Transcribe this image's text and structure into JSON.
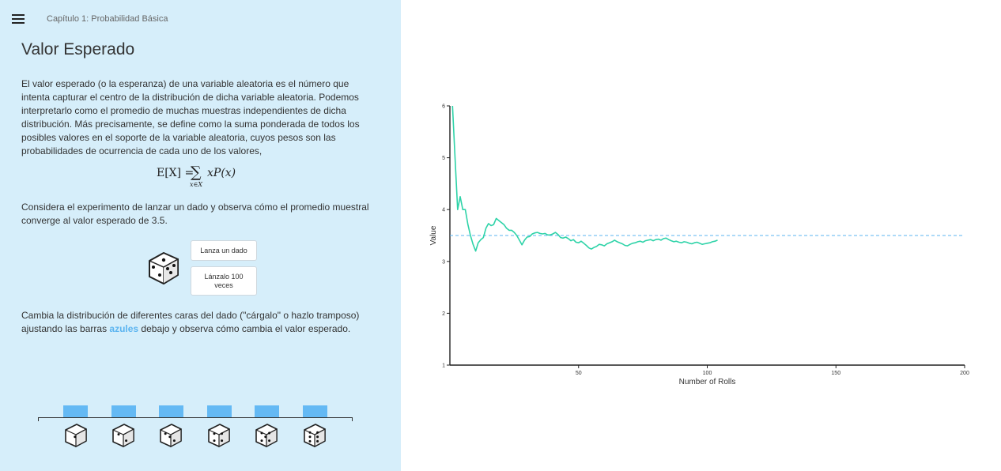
{
  "header": {
    "chapter": "Capítulo 1: Probabilidad Básica"
  },
  "page_title": "Valor Esperado",
  "paragraphs": {
    "p1": "El valor esperado (o la esperanza) de una variable aleatoria es el número que intenta capturar el centro de la distribución de dicha variable aleatoria. Podemos interpretarlo como el promedio de muchas muestras independientes de dicha distribución. Más precisamente, se define como la suma ponderada de todos los posibles valores en el soporte de la variable aleatoria, cuyos pesos son las probabilidades de ocurrencia de cada uno de los valores,",
    "p2": "Considera el experimento de lanzar un dado y observa cómo el promedio muestral converge al valor esperado de 3.5.",
    "p3_before": "Cambia la distribución de diferentes caras del dado (\"cárgalo\" o hazlo trampo­so) ajustando las barras ",
    "p3_highlight": "azules",
    "p3_after": " debajo y observa cómo cambia el valor esperado."
  },
  "formula": {
    "lhs": "E[X] =",
    "sigma": "∑",
    "sub": "x∈X",
    "rhs": "xP(x)"
  },
  "buttons": {
    "roll_one": "Lanza un dado",
    "roll_hundred": "Lánzalo 100 veces"
  },
  "colors": {
    "panel": "#d6eefa",
    "bar": "#64b9f4",
    "line": "#2ed3a8",
    "expected": "#5bb4f0",
    "highlight": "#5bb4f0"
  },
  "distribution": {
    "faces": [
      1,
      2,
      3,
      4,
      5,
      6
    ],
    "probabilities": [
      0.1667,
      0.1667,
      0.1667,
      0.1667,
      0.1667,
      0.1667
    ]
  },
  "chart_data": {
    "type": "line",
    "xlabel": "Number of Rolls",
    "ylabel": "Value",
    "xlim": [
      0,
      200
    ],
    "ylim": [
      1,
      6
    ],
    "xticks": [
      50,
      100,
      150,
      200
    ],
    "yticks": [
      1,
      2,
      3,
      4,
      5,
      6
    ],
    "expected_value": 3.5,
    "series": [
      {
        "x": [
          1,
          2,
          3,
          4,
          5,
          6,
          7,
          8,
          9,
          10,
          11,
          12,
          13,
          14,
          15,
          16,
          17,
          18,
          19,
          20,
          21,
          22,
          23,
          24,
          25,
          26,
          27,
          28,
          29,
          30,
          31,
          32,
          33,
          34,
          35,
          36,
          37,
          38,
          39,
          40,
          41,
          42,
          43,
          44,
          45,
          46,
          47,
          48,
          49,
          50,
          51,
          52,
          53,
          54,
          55,
          56,
          57,
          58,
          59,
          60,
          61,
          62,
          63,
          64,
          65,
          66,
          67,
          68,
          69,
          70,
          71,
          72,
          73,
          74,
          75,
          76,
          77,
          78,
          79,
          80,
          81,
          82,
          83,
          84,
          85,
          86,
          87,
          88,
          89,
          90,
          91,
          92,
          93,
          94,
          95,
          96,
          97,
          98,
          99,
          100,
          101,
          102,
          103,
          104
        ],
        "y": [
          6.0,
          5.0,
          4.0,
          4.25,
          4.0,
          4.0,
          3.71,
          3.5,
          3.33,
          3.2,
          3.36,
          3.42,
          3.46,
          3.64,
          3.73,
          3.69,
          3.71,
          3.83,
          3.79,
          3.75,
          3.71,
          3.64,
          3.6,
          3.6,
          3.56,
          3.5,
          3.41,
          3.32,
          3.41,
          3.47,
          3.48,
          3.53,
          3.55,
          3.56,
          3.54,
          3.53,
          3.54,
          3.51,
          3.51,
          3.53,
          3.56,
          3.52,
          3.46,
          3.45,
          3.47,
          3.44,
          3.4,
          3.42,
          3.37,
          3.36,
          3.39,
          3.35,
          3.31,
          3.26,
          3.24,
          3.27,
          3.29,
          3.33,
          3.32,
          3.3,
          3.34,
          3.36,
          3.38,
          3.41,
          3.38,
          3.36,
          3.34,
          3.31,
          3.3,
          3.33,
          3.35,
          3.36,
          3.38,
          3.39,
          3.37,
          3.4,
          3.41,
          3.42,
          3.4,
          3.42,
          3.43,
          3.41,
          3.44,
          3.45,
          3.42,
          3.4,
          3.38,
          3.39,
          3.37,
          3.36,
          3.38,
          3.37,
          3.35,
          3.34,
          3.36,
          3.37,
          3.35,
          3.33,
          3.34,
          3.35,
          3.36,
          3.38,
          3.39,
          3.41
        ]
      }
    ]
  }
}
